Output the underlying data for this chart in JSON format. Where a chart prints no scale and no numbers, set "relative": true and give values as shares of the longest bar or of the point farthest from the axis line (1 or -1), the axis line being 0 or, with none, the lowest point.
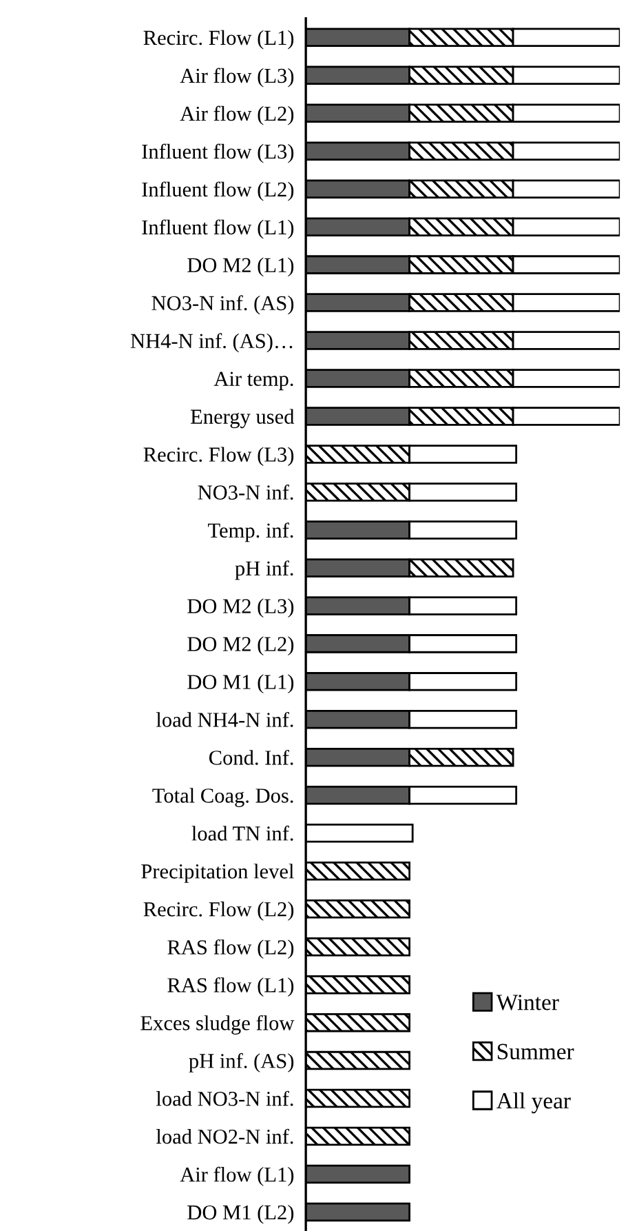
{
  "chart_data": {
    "type": "bar",
    "orientation": "horizontal",
    "stacked": true,
    "relative": true,
    "legend": "bottom right",
    "categories": [
      "Recirc. Flow (L1)",
      "Air flow (L3)",
      "Air flow (L2)",
      "Influent flow (L3)",
      "Influent flow (L2)",
      "Influent flow (L1)",
      "DO M2 (L1)",
      "NO3-N inf. (AS)",
      "NH4-N inf. (AS)…",
      "Air temp.",
      "Energy used",
      "Recirc. Flow (L3)",
      "NO3-N inf.",
      "Temp. inf.",
      "pH inf.",
      "DO M2 (L3)",
      "DO M2 (L2)",
      "DO M1 (L1)",
      "load NH4-N inf.",
      "Cond. Inf.",
      "Total Coag. Dos.",
      "load TN inf.",
      "Precipitation level",
      "Recirc. Flow (L2)",
      "RAS flow (L2)",
      "RAS flow (L1)",
      "Exces sludge flow",
      "pH inf. (AS)",
      "load NO3-N inf.",
      "load NO2-N inf.",
      "Air flow (L1)",
      "DO M1 (L2)"
    ],
    "series": [
      {
        "name": "Winter",
        "color": "#595959",
        "values": [
          0.33,
          0.33,
          0.33,
          0.33,
          0.33,
          0.33,
          0.33,
          0.33,
          0.33,
          0.33,
          0.33,
          null,
          null,
          0.33,
          0.33,
          0.33,
          0.33,
          0.33,
          0.33,
          0.33,
          0.33,
          null,
          null,
          null,
          null,
          null,
          null,
          null,
          null,
          null,
          0.33,
          0.33
        ]
      },
      {
        "name": "Summer",
        "color": "#000000",
        "values": [
          0.33,
          0.33,
          0.33,
          0.33,
          0.33,
          0.33,
          0.33,
          0.33,
          0.33,
          0.33,
          0.33,
          0.33,
          0.33,
          null,
          0.33,
          null,
          null,
          null,
          null,
          0.33,
          null,
          null,
          0.33,
          0.33,
          0.33,
          0.33,
          0.33,
          0.33,
          0.33,
          0.33,
          null,
          null
        ]
      },
      {
        "name": "All year",
        "color": "#ffffff",
        "values": [
          0.34,
          0.34,
          0.34,
          0.34,
          0.34,
          0.34,
          0.34,
          0.34,
          0.34,
          0.34,
          0.34,
          0.34,
          0.34,
          0.34,
          null,
          0.34,
          0.34,
          0.34,
          0.34,
          null,
          0.34,
          0.34,
          null,
          null,
          null,
          null,
          null,
          null,
          null,
          null,
          null,
          null
        ]
      }
    ]
  }
}
